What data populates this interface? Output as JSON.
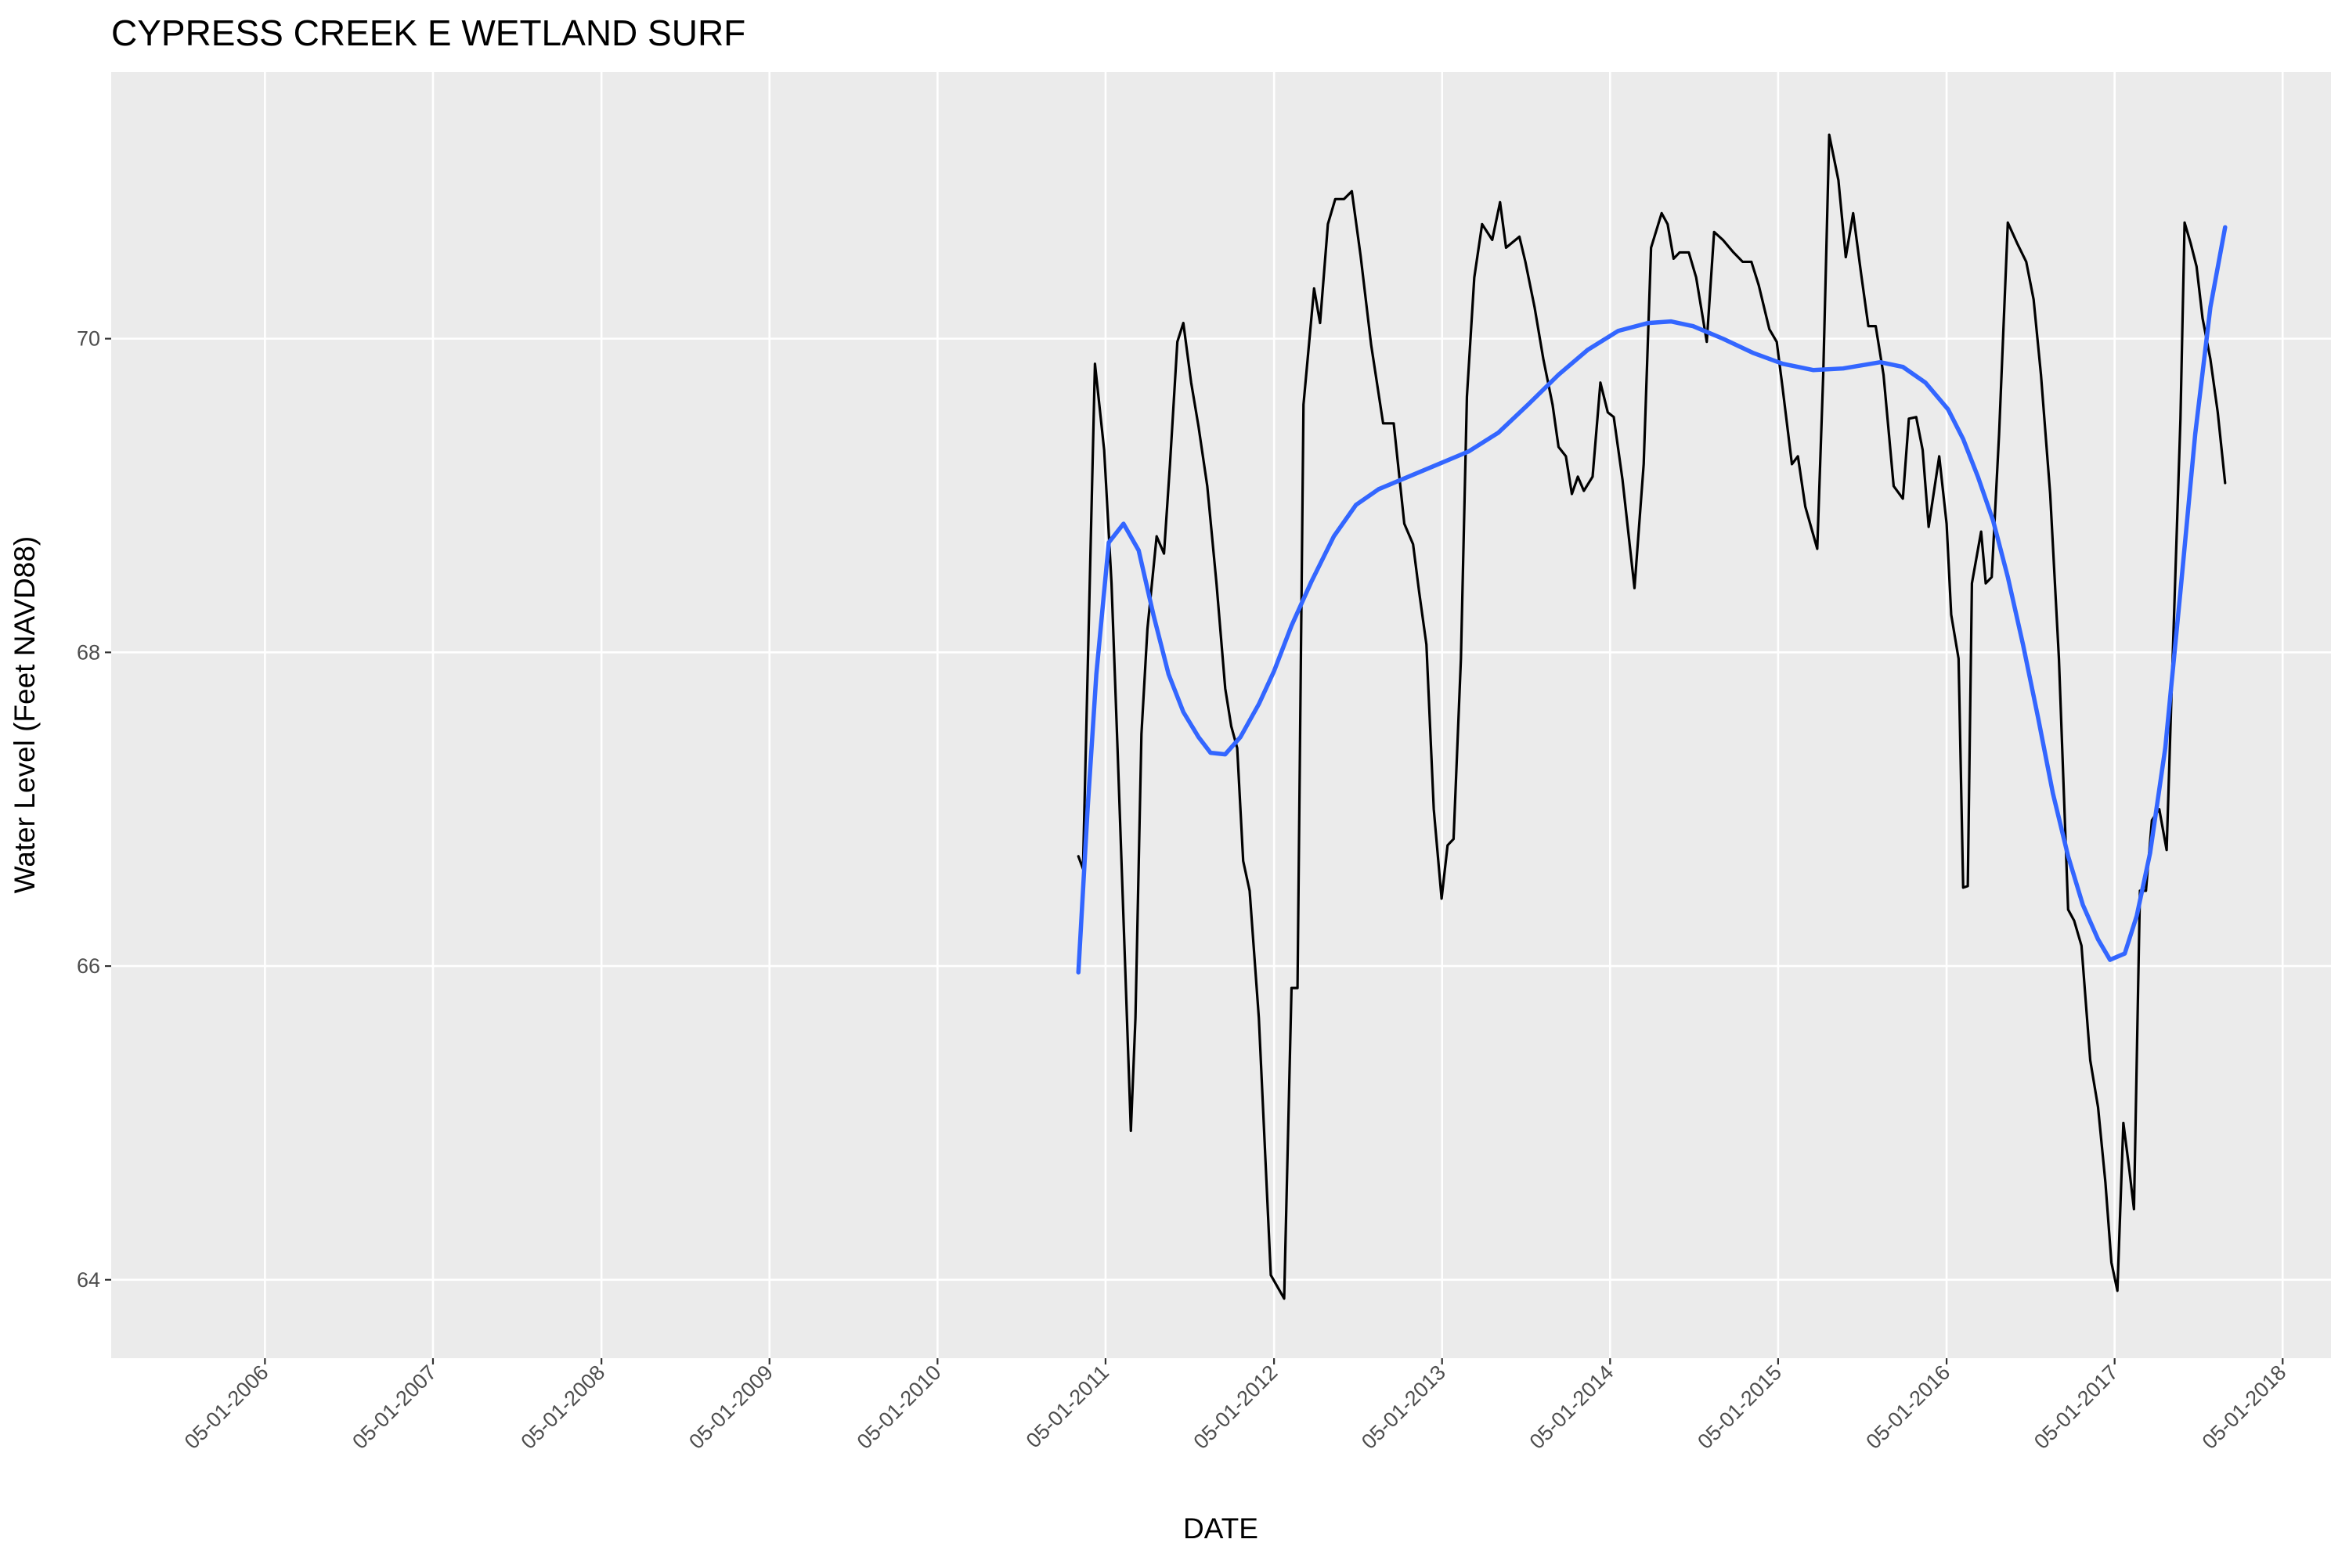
{
  "chart_data": {
    "type": "line",
    "title": "CYPRESS CREEK E WETLAND SURF",
    "x_label": "DATE",
    "y_label": "Water Level (Feet NAVD88)",
    "xlim": [
      "2005-06-01",
      "2018-08-14"
    ],
    "xticks": [
      {
        "value": "2006-05-01",
        "label": "05-01-2006"
      },
      {
        "value": "2007-05-01",
        "label": "05-01-2007"
      },
      {
        "value": "2008-05-01",
        "label": "05-01-2008"
      },
      {
        "value": "2009-05-01",
        "label": "05-01-2009"
      },
      {
        "value": "2010-05-01",
        "label": "05-01-2010"
      },
      {
        "value": "2011-05-01",
        "label": "05-01-2011"
      },
      {
        "value": "2012-05-01",
        "label": "05-01-2012"
      },
      {
        "value": "2013-05-01",
        "label": "05-01-2013"
      },
      {
        "value": "2014-05-01",
        "label": "05-01-2014"
      },
      {
        "value": "2015-05-01",
        "label": "05-01-2015"
      },
      {
        "value": "2016-05-01",
        "label": "05-01-2016"
      },
      {
        "value": "2017-05-01",
        "label": "05-01-2017"
      },
      {
        "value": "2018-05-01",
        "label": "05-01-2018"
      }
    ],
    "ylim": [
      63.5,
      71.7
    ],
    "yticks": [
      64,
      66,
      68,
      70
    ],
    "grid": true,
    "series": [
      {
        "color": "#000000",
        "x": [
          "2011-03-03",
          "2011-03-13",
          "2011-04-08",
          "2011-04-28",
          "2011-05-14",
          "2011-05-27",
          "2011-06-12",
          "2011-06-25",
          "2011-07-05",
          "2011-07-18",
          "2011-07-31",
          "2011-08-20",
          "2011-09-05",
          "2011-09-18",
          "2011-10-04",
          "2011-10-17",
          "2011-11-03",
          "2011-11-19",
          "2011-12-08",
          "2011-12-28",
          "2012-01-16",
          "2012-01-29",
          "2012-02-11",
          "2012-02-24",
          "2012-03-09",
          "2012-03-29",
          "2012-04-24",
          "2012-05-23",
          "2012-06-08",
          "2012-06-21",
          "2012-07-04",
          "2012-07-27",
          "2012-08-09",
          "2012-08-26",
          "2012-09-11",
          "2012-09-30",
          "2012-10-17",
          "2012-11-05",
          "2012-11-28",
          "2012-12-24",
          "2013-01-16",
          "2013-02-08",
          "2013-02-27",
          "2013-03-12",
          "2013-03-28",
          "2013-04-13",
          "2013-04-30",
          "2013-05-13",
          "2013-05-26",
          "2013-06-11",
          "2013-06-24",
          "2013-07-10",
          "2013-07-27",
          "2013-08-18",
          "2013-09-04",
          "2013-09-17",
          "2013-10-16",
          "2013-10-29",
          "2013-11-18",
          "2013-12-07",
          "2013-12-27",
          "2014-01-09",
          "2014-01-25",
          "2014-02-07",
          "2014-02-20",
          "2014-03-05",
          "2014-03-24",
          "2014-04-10",
          "2014-04-26",
          "2014-05-09",
          "2014-05-28",
          "2014-06-23",
          "2014-07-13",
          "2014-07-29",
          "2014-08-21",
          "2014-09-03",
          "2014-09-16",
          "2014-09-29",
          "2014-10-19",
          "2014-11-04",
          "2014-11-27",
          "2014-12-13",
          "2015-01-01",
          "2015-01-24",
          "2015-02-13",
          "2015-03-04",
          "2015-03-20",
          "2015-04-12",
          "2015-04-28",
          "2015-05-11",
          "2015-05-31",
          "2015-06-13",
          "2015-06-29",
          "2015-07-25",
          "2015-08-07",
          "2015-08-20",
          "2015-09-09",
          "2015-09-25",
          "2015-10-11",
          "2015-10-28",
          "2015-11-13",
          "2015-11-29",
          "2015-12-16",
          "2016-01-07",
          "2016-01-27",
          "2016-02-09",
          "2016-02-25",
          "2016-03-10",
          "2016-03-23",
          "2016-04-15",
          "2016-05-01",
          "2016-05-11",
          "2016-05-27",
          "2016-06-06",
          "2016-06-16",
          "2016-06-25",
          "2016-07-15",
          "2016-07-25",
          "2016-08-07",
          "2016-08-23",
          "2016-09-11",
          "2016-10-01",
          "2016-10-21",
          "2016-11-06",
          "2016-11-22",
          "2016-12-12",
          "2016-12-31",
          "2017-01-20",
          "2017-02-02",
          "2017-02-18",
          "2017-03-09",
          "2017-03-26",
          "2017-04-11",
          "2017-04-24",
          "2017-05-07",
          "2017-05-20",
          "2017-06-02",
          "2017-06-12",
          "2017-06-25",
          "2017-07-08",
          "2017-07-21",
          "2017-08-06",
          "2017-08-22",
          "2017-09-04",
          "2017-09-21",
          "2017-09-30",
          "2017-10-13",
          "2017-10-26",
          "2017-11-08",
          "2017-11-25",
          "2017-12-11",
          "2017-12-27"
        ],
        "values": [
          66.7,
          66.62,
          69.84,
          69.29,
          68.44,
          67.39,
          66.05,
          64.95,
          65.67,
          67.48,
          68.15,
          68.74,
          68.63,
          69.2,
          69.98,
          70.1,
          69.72,
          69.44,
          69.06,
          68.44,
          67.77,
          67.53,
          67.39,
          66.67,
          66.48,
          65.67,
          64.03,
          63.88,
          65.86,
          65.86,
          69.58,
          70.32,
          70.1,
          70.73,
          70.89,
          70.89,
          70.94,
          70.53,
          69.96,
          69.46,
          69.46,
          68.82,
          68.69,
          68.39,
          68.05,
          67.0,
          66.43,
          66.77,
          66.81,
          67.96,
          69.63,
          70.39,
          70.73,
          70.63,
          70.87,
          70.58,
          70.65,
          70.49,
          70.2,
          69.87,
          69.58,
          69.31,
          69.25,
          69.01,
          69.12,
          69.03,
          69.12,
          69.72,
          69.53,
          69.5,
          69.1,
          68.41,
          69.2,
          70.58,
          70.8,
          70.73,
          70.51,
          70.55,
          70.55,
          70.39,
          69.98,
          70.68,
          70.63,
          70.55,
          70.49,
          70.49,
          70.34,
          70.06,
          69.98,
          69.68,
          69.2,
          69.25,
          68.93,
          68.66,
          69.77,
          71.3,
          71.01,
          70.52,
          70.8,
          70.42,
          70.08,
          70.08,
          69.77,
          69.06,
          68.98,
          69.49,
          69.5,
          69.29,
          68.8,
          69.25,
          68.82,
          68.24,
          67.96,
          66.5,
          66.51,
          68.44,
          68.77,
          68.44,
          68.48,
          69.39,
          70.74,
          70.61,
          70.49,
          70.25,
          69.77,
          69.01,
          67.96,
          66.36,
          66.29,
          66.13,
          65.4,
          65.1,
          64.62,
          64.11,
          63.93,
          65.0,
          64.7,
          64.45,
          66.48,
          66.48,
          66.93,
          67.0,
          66.74,
          67.96,
          69.49,
          70.74,
          70.61,
          70.46,
          70.13,
          69.87,
          69.53,
          69.08
        ]
      },
      {
        "color": "#3366ff",
        "x": [
          "2011-03-03",
          "2011-03-23",
          "2011-04-11",
          "2011-05-08",
          "2011-06-09",
          "2011-07-12",
          "2011-08-13",
          "2011-09-15",
          "2011-10-17",
          "2011-11-19",
          "2011-12-15",
          "2012-01-16",
          "2012-02-18",
          "2012-03-29",
          "2012-05-01",
          "2012-06-08",
          "2012-07-21",
          "2012-09-08",
          "2012-10-26",
          "2012-12-14",
          "2013-02-17",
          "2013-04-23",
          "2013-06-27",
          "2013-08-31",
          "2013-11-04",
          "2014-01-09",
          "2014-03-14",
          "2014-05-19",
          "2014-07-23",
          "2014-09-10",
          "2014-10-28",
          "2015-01-01",
          "2015-03-07",
          "2015-05-11",
          "2015-07-16",
          "2015-09-19",
          "2015-12-09",
          "2016-01-27",
          "2016-03-16",
          "2016-05-04",
          "2016-06-06",
          "2016-07-08",
          "2016-08-10",
          "2016-09-11",
          "2016-10-14",
          "2016-11-16",
          "2016-12-18",
          "2017-01-20",
          "2017-02-21",
          "2017-03-26",
          "2017-04-21",
          "2017-05-23",
          "2017-06-18",
          "2017-07-17",
          "2017-08-19",
          "2017-09-21",
          "2017-10-23",
          "2017-11-25",
          "2017-12-27"
        ],
        "values": [
          65.96,
          67.0,
          67.86,
          68.7,
          68.82,
          68.65,
          68.24,
          67.86,
          67.62,
          67.46,
          67.36,
          67.35,
          67.46,
          67.67,
          67.88,
          68.17,
          68.45,
          68.74,
          68.94,
          69.04,
          69.12,
          69.2,
          69.28,
          69.4,
          69.58,
          69.77,
          69.93,
          70.05,
          70.1,
          70.11,
          70.08,
          70.0,
          69.91,
          69.84,
          69.8,
          69.81,
          69.85,
          69.82,
          69.72,
          69.55,
          69.36,
          69.12,
          68.84,
          68.48,
          68.05,
          67.58,
          67.1,
          66.7,
          66.39,
          66.17,
          66.04,
          66.08,
          66.32,
          66.72,
          67.39,
          68.39,
          69.39,
          70.2,
          70.71
        ]
      }
    ]
  }
}
